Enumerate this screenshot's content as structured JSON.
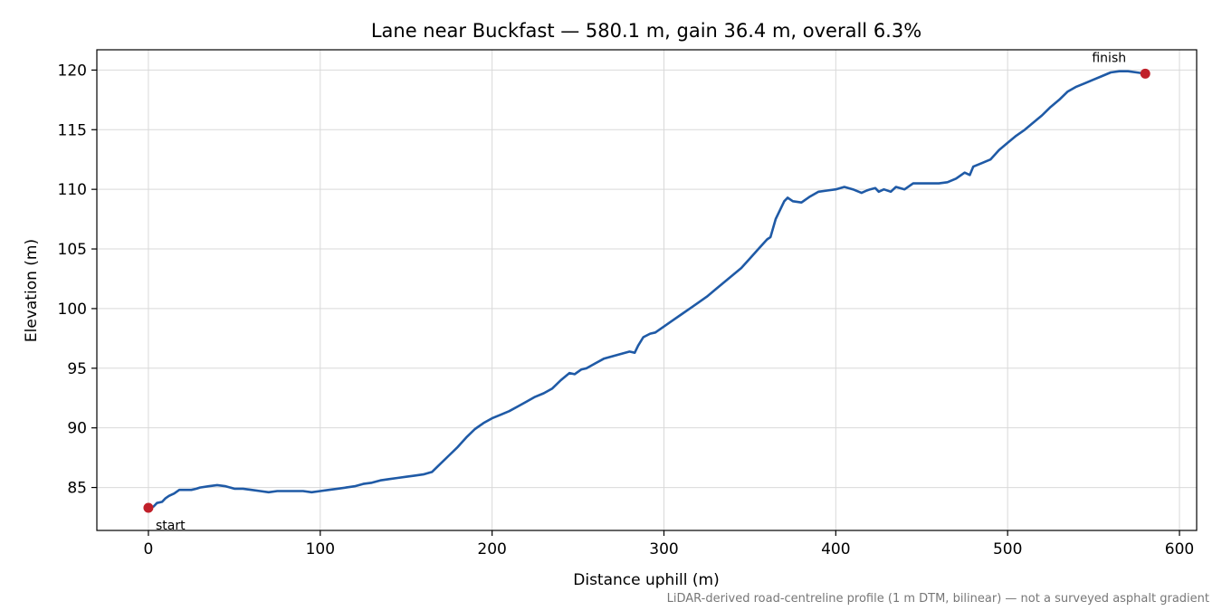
{
  "chart_data": {
    "type": "line",
    "title": "Lane near Buckfast — 580.1 m, gain 36.4 m, overall 6.3%",
    "xlabel": "Distance uphill (m)",
    "ylabel": "Elevation (m)",
    "xlim": [
      -30,
      610
    ],
    "ylim": [
      81.4,
      121.7
    ],
    "xticks": [
      0,
      100,
      200,
      300,
      400,
      500,
      600
    ],
    "yticks": [
      85,
      90,
      95,
      100,
      105,
      110,
      115,
      120
    ],
    "grid": true,
    "line_color": "#1f5aa6",
    "marker_color": "#c0202a",
    "series": [
      {
        "x": [
          0,
          3,
          5,
          8,
          10,
          12,
          15,
          18,
          20,
          22,
          25,
          28,
          30,
          35,
          40,
          45,
          50,
          55,
          60,
          65,
          70,
          75,
          80,
          85,
          90,
          95,
          100,
          105,
          110,
          115,
          120,
          125,
          130,
          135,
          140,
          145,
          150,
          155,
          160,
          165,
          170,
          175,
          180,
          185,
          190,
          195,
          200,
          205,
          210,
          215,
          220,
          225,
          230,
          235,
          240,
          245,
          248,
          252,
          255,
          260,
          265,
          270,
          275,
          280,
          283,
          285,
          288,
          292,
          295,
          300,
          305,
          310,
          315,
          320,
          325,
          330,
          335,
          340,
          345,
          350,
          355,
          360,
          362,
          365,
          368,
          370,
          372,
          375,
          380,
          385,
          390,
          395,
          400,
          405,
          410,
          415,
          418,
          420,
          423,
          425,
          428,
          432,
          435,
          440,
          445,
          450,
          455,
          460,
          465,
          470,
          475,
          478,
          480,
          485,
          490,
          495,
          500,
          505,
          510,
          515,
          520,
          525,
          530,
          535,
          540,
          545,
          550,
          555,
          560,
          565,
          570,
          575,
          580.1
        ],
        "y": [
          83.3,
          83.4,
          83.7,
          83.8,
          84.1,
          84.3,
          84.5,
          84.8,
          84.8,
          84.8,
          84.8,
          84.9,
          85.0,
          85.1,
          85.2,
          85.1,
          84.9,
          84.9,
          84.8,
          84.7,
          84.6,
          84.7,
          84.7,
          84.7,
          84.7,
          84.6,
          84.7,
          84.8,
          84.9,
          85.0,
          85.1,
          85.3,
          85.4,
          85.6,
          85.7,
          85.8,
          85.9,
          86.0,
          86.1,
          86.3,
          87.0,
          87.7,
          88.4,
          89.2,
          89.9,
          90.4,
          90.8,
          91.1,
          91.4,
          91.8,
          92.2,
          92.6,
          92.9,
          93.3,
          94.0,
          94.6,
          94.5,
          94.9,
          95.0,
          95.4,
          95.8,
          96.0,
          96.2,
          96.4,
          96.3,
          96.9,
          97.6,
          97.9,
          98.0,
          98.5,
          99.0,
          99.5,
          100.0,
          100.5,
          101.0,
          101.6,
          102.2,
          102.8,
          103.4,
          104.2,
          105.0,
          105.8,
          106.0,
          107.5,
          108.4,
          109.0,
          109.3,
          109.0,
          108.9,
          109.4,
          109.8,
          109.9,
          110.0,
          110.2,
          110.0,
          109.7,
          109.9,
          110.0,
          110.1,
          109.8,
          110.0,
          109.8,
          110.2,
          110.0,
          110.5,
          110.5,
          110.5,
          110.5,
          110.6,
          110.9,
          111.4,
          111.2,
          111.9,
          112.2,
          112.5,
          113.3,
          113.9,
          114.5,
          115.0,
          115.6,
          116.2,
          116.9,
          117.5,
          118.2,
          118.6,
          118.9,
          119.2,
          119.5,
          119.8,
          119.9,
          119.9,
          119.8,
          119.7
        ]
      }
    ],
    "markers": [
      {
        "label": "start",
        "x": 0,
        "y": 83.3
      },
      {
        "label": "finish",
        "x": 580.1,
        "y": 119.7
      }
    ]
  },
  "caption": "LiDAR-derived road-centreline profile (1 m DTM, bilinear) — not a surveyed asphalt gradient"
}
